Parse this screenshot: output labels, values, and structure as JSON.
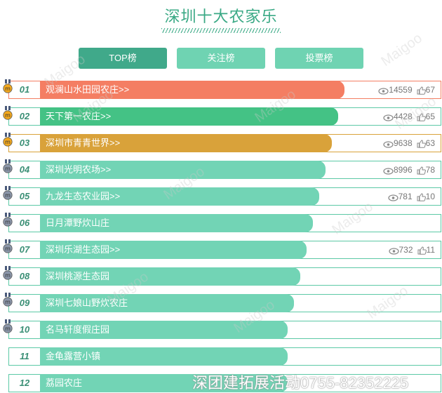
{
  "title": "深圳十大农家乐",
  "tabs": [
    "TOP榜",
    "关注榜",
    "投票榜"
  ],
  "items": [
    {
      "rank": "01",
      "name": "观澜山水田园农庄>>",
      "views": "14559",
      "likes": "67",
      "medal": "gold"
    },
    {
      "rank": "02",
      "name": "天下第一农庄>>",
      "views": "4428",
      "likes": "65",
      "medal": "gold"
    },
    {
      "rank": "03",
      "name": "深圳市青青世界>>",
      "views": "9638",
      "likes": "63",
      "medal": "gold"
    },
    {
      "rank": "04",
      "name": "深圳光明农场>>",
      "views": "8996",
      "likes": "78",
      "medal": "silver"
    },
    {
      "rank": "05",
      "name": "九龙生态农业园>>",
      "views": "781",
      "likes": "10",
      "medal": "silver"
    },
    {
      "rank": "06",
      "name": "日月潭野炊山庄",
      "views": "",
      "likes": "",
      "medal": "silver"
    },
    {
      "rank": "07",
      "name": "深圳乐湖生态园>>",
      "views": "732",
      "likes": "11",
      "medal": "silver"
    },
    {
      "rank": "08",
      "name": "深圳桃源生态园",
      "views": "",
      "likes": "",
      "medal": "silver"
    },
    {
      "rank": "09",
      "name": "深圳七娘山野炊农庄",
      "views": "",
      "likes": "",
      "medal": "silver"
    },
    {
      "rank": "10",
      "name": "名马轩度假庄园",
      "views": "",
      "likes": "",
      "medal": "silver"
    },
    {
      "rank": "11",
      "name": "金龟露营小镇",
      "views": "",
      "likes": "",
      "medal": ""
    },
    {
      "rank": "12",
      "name": "荔园农庄",
      "views": "",
      "likes": "",
      "medal": ""
    }
  ],
  "watermark": "Maigoo",
  "footer": "深团建拓展活动0755-82352225",
  "colors": {
    "first": "#f47e63",
    "second": "#44c285",
    "third": "#d9a23a",
    "rest": "#72d4b5",
    "gold": "#f2a81d",
    "silver": "#8a95a8"
  }
}
